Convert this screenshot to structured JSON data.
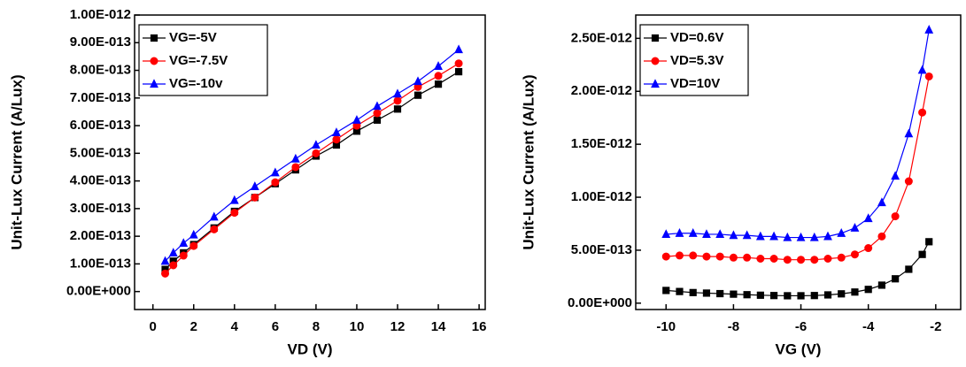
{
  "chart_data": [
    {
      "type": "line",
      "x_label": "VD (V)",
      "y_label": "Unit-Lux Current (A/Lux)",
      "xlim": [
        -0.9,
        16.3
      ],
      "xticks": [
        0,
        2,
        4,
        6,
        8,
        10,
        12,
        14,
        16
      ],
      "ylim": [
        -6.5e-14,
        1e-12
      ],
      "yticks": [
        {
          "value": 0,
          "label": "0.00E+000"
        },
        {
          "value": 1e-13,
          "label": "1.00E-013"
        },
        {
          "value": 2e-13,
          "label": "2.00E-013"
        },
        {
          "value": 3e-13,
          "label": "3.00E-013"
        },
        {
          "value": 4e-13,
          "label": "4.00E-013"
        },
        {
          "value": 5e-13,
          "label": "5.00E-013"
        },
        {
          "value": 6e-13,
          "label": "6.00E-013"
        },
        {
          "value": 7e-13,
          "label": "7.00E-013"
        },
        {
          "value": 8e-13,
          "label": "8.00E-013"
        },
        {
          "value": 9e-13,
          "label": "9.00E-013"
        },
        {
          "value": 1e-12,
          "label": "1.00E-012"
        }
      ],
      "legend": "top-left",
      "x": [
        0.6,
        1,
        1.5,
        2,
        3,
        4,
        5,
        6,
        7,
        8,
        9,
        10,
        11,
        12,
        13,
        14,
        15
      ],
      "series": [
        {
          "name": "VG=-5V",
          "color": "#000000",
          "marker": "square",
          "values": [
            8e-14,
            1.1e-13,
            1.4e-13,
            1.7e-13,
            2.3e-13,
            2.9e-13,
            3.4e-13,
            3.9e-13,
            4.4e-13,
            4.9e-13,
            5.3e-13,
            5.8e-13,
            6.2e-13,
            6.6e-13,
            7.1e-13,
            7.5e-13,
            7.95e-13
          ]
        },
        {
          "name": "VG=-7.5V",
          "color": "#ff0000",
          "marker": "circle",
          "values": [
            6.5e-14,
            9.5e-14,
            1.3e-13,
            1.65e-13,
            2.25e-13,
            2.85e-13,
            3.4e-13,
            3.95e-13,
            4.5e-13,
            5e-13,
            5.5e-13,
            6e-13,
            6.45e-13,
            6.9e-13,
            7.4e-13,
            7.8e-13,
            8.25e-13
          ]
        },
        {
          "name": "VG=-10v",
          "color": "#0000ff",
          "marker": "triangle",
          "values": [
            1.1e-13,
            1.4e-13,
            1.75e-13,
            2.05e-13,
            2.7e-13,
            3.3e-13,
            3.8e-13,
            4.3e-13,
            4.8e-13,
            5.3e-13,
            5.75e-13,
            6.2e-13,
            6.7e-13,
            7.15e-13,
            7.6e-13,
            8.15e-13,
            8.75e-13
          ]
        }
      ]
    },
    {
      "type": "line",
      "x_label": "VG (V)",
      "y_label": "Unit-Lux Current (A/Lux)",
      "xlim": [
        -10.9,
        -1.26
      ],
      "xticks": [
        -10,
        -8,
        -6,
        -4,
        -2
      ],
      "ylim": [
        -6e-14,
        2.72e-12
      ],
      "yticks": [
        {
          "value": 0,
          "label": "0.00E+000"
        },
        {
          "value": 5e-13,
          "label": "5.00E-013"
        },
        {
          "value": 1e-12,
          "label": "1.00E-012"
        },
        {
          "value": 1.5e-12,
          "label": "1.50E-012"
        },
        {
          "value": 2e-12,
          "label": "2.00E-012"
        },
        {
          "value": 2.5e-12,
          "label": "2.50E-012"
        }
      ],
      "legend": "top-left",
      "x": [
        -10,
        -9.6,
        -9.2,
        -8.8,
        -8.4,
        -8,
        -7.6,
        -7.2,
        -6.8,
        -6.4,
        -6,
        -5.6,
        -5.2,
        -4.8,
        -4.4,
        -4,
        -3.6,
        -3.2,
        -2.8,
        -2.4,
        -2.2
      ],
      "series": [
        {
          "name": "VD=0.6V",
          "color": "#000000",
          "marker": "square",
          "values": [
            1.2e-13,
            1.1e-13,
            1e-13,
            9.5e-14,
            9e-14,
            8.5e-14,
            8e-14,
            7.5e-14,
            7.2e-14,
            7e-14,
            7e-14,
            7.2e-14,
            7.8e-14,
            8.8e-14,
            1.05e-13,
            1.3e-13,
            1.7e-13,
            2.3e-13,
            3.2e-13,
            4.6e-13,
            5.8e-13
          ]
        },
        {
          "name": "VD=5.3V",
          "color": "#ff0000",
          "marker": "circle",
          "values": [
            4.4e-13,
            4.5e-13,
            4.5e-13,
            4.4e-13,
            4.4e-13,
            4.3e-13,
            4.3e-13,
            4.2e-13,
            4.2e-13,
            4.1e-13,
            4.1e-13,
            4.1e-13,
            4.2e-13,
            4.3e-13,
            4.6e-13,
            5.2e-13,
            6.3e-13,
            8.2e-13,
            1.15e-12,
            1.8e-12,
            2.14e-12
          ]
        },
        {
          "name": "VD=10V",
          "color": "#0000ff",
          "marker": "triangle",
          "values": [
            6.5e-13,
            6.6e-13,
            6.6e-13,
            6.5e-13,
            6.5e-13,
            6.4e-13,
            6.4e-13,
            6.3e-13,
            6.3e-13,
            6.2e-13,
            6.2e-13,
            6.2e-13,
            6.3e-13,
            6.6e-13,
            7.1e-13,
            8e-13,
            9.5e-13,
            1.2e-12,
            1.6e-12,
            2.2e-12,
            2.58e-12
          ]
        }
      ]
    }
  ]
}
